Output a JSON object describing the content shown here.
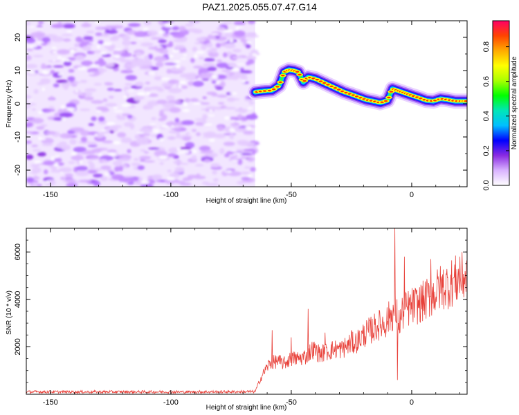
{
  "figure_title": "PAZ1.2025.055.07.47.G14",
  "chart_data": [
    {
      "type": "heatmap",
      "name": "spectrogram",
      "xlabel": "Height of straight line (km)",
      "ylabel": "Frequency (Hz)",
      "xlim": [
        -160,
        23
      ],
      "ylim": [
        -25,
        25
      ],
      "xticks": [
        -150,
        -100,
        -50,
        0
      ],
      "yticks": [
        -20,
        -10,
        0,
        10,
        20
      ],
      "grid": false,
      "noise_region_x": [
        -160,
        -65
      ],
      "ridge": {
        "x": [
          -65,
          -62,
          -58,
          -55,
          -53,
          -51,
          -49,
          -47,
          -45,
          -43,
          -40,
          -37,
          -34,
          -31,
          -28,
          -25,
          -22,
          -19,
          -16,
          -13,
          -10,
          -8,
          -6,
          -4,
          -2,
          0,
          3,
          6,
          9,
          12,
          15,
          18,
          21,
          23
        ],
        "frequency": [
          3.5,
          3.8,
          4.0,
          5.5,
          9.5,
          10.2,
          10.0,
          9.5,
          6.5,
          8.0,
          7.5,
          6.5,
          5.5,
          4.5,
          3.5,
          2.8,
          2.0,
          1.2,
          0.8,
          0.3,
          1.0,
          4.5,
          4.0,
          3.5,
          3.0,
          2.5,
          1.8,
          1.0,
          0.8,
          1.5,
          1.2,
          0.8,
          0.8,
          0.8
        ]
      },
      "colorbar": {
        "label": "Normalized spectral amplitude",
        "range": [
          0.0,
          0.95
        ],
        "ticks": [
          0.0,
          0.2,
          0.4,
          0.6,
          0.8
        ],
        "tick_labels": [
          "0.0",
          "0.2",
          "0.4",
          "0.6",
          "0.8"
        ],
        "colors": [
          "#ffffff",
          "#d9b3ff",
          "#8a2be2",
          "#0000ff",
          "#00bfff",
          "#00e6b8",
          "#00ff00",
          "#aaff00",
          "#ffff00",
          "#ffaa00",
          "#ff4400",
          "#ff0066"
        ]
      }
    },
    {
      "type": "line",
      "name": "snr",
      "xlabel": "Height of straight line (km)",
      "ylabel": "SNR (10 * v/v)",
      "xlim": [
        -160,
        23
      ],
      "ylim": [
        0,
        7000
      ],
      "xticks": [
        -150,
        -100,
        -50,
        0
      ],
      "yticks": [
        2000,
        4000,
        6000
      ],
      "grid": false,
      "color": "#e8413a",
      "envelope": {
        "x": [
          -160,
          -120,
          -80,
          -65,
          -63,
          -61,
          -59,
          -56,
          -53,
          -50,
          -47,
          -44,
          -41,
          -38,
          -35,
          -32,
          -29,
          -26,
          -23,
          -20,
          -17,
          -14,
          -11,
          -9,
          -7,
          -6,
          -5,
          -4,
          -2,
          0,
          3,
          6,
          9,
          12,
          15,
          18,
          21,
          23
        ],
        "y": [
          100,
          100,
          100,
          110,
          600,
          1000,
          1300,
          1400,
          1300,
          1500,
          1500,
          1600,
          1900,
          1700,
          1800,
          1900,
          1900,
          2100,
          2200,
          2500,
          2700,
          2900,
          3000,
          3300,
          3500,
          3300,
          3000,
          3400,
          3600,
          3700,
          3800,
          4000,
          4200,
          4500,
          4600,
          4800,
          4900,
          5000
        ]
      },
      "spikes": [
        {
          "x": -58,
          "y": 2700
        },
        {
          "x": -50,
          "y": 2400
        },
        {
          "x": -43,
          "y": 3600
        },
        {
          "x": -36,
          "y": 2600
        },
        {
          "x": -25,
          "y": 2700
        },
        {
          "x": -7,
          "y": 7000
        },
        {
          "x": -6,
          "y": 600
        },
        {
          "x": -3,
          "y": 5800
        },
        {
          "x": 8,
          "y": 5700
        },
        {
          "x": 20,
          "y": 5800
        }
      ]
    }
  ]
}
